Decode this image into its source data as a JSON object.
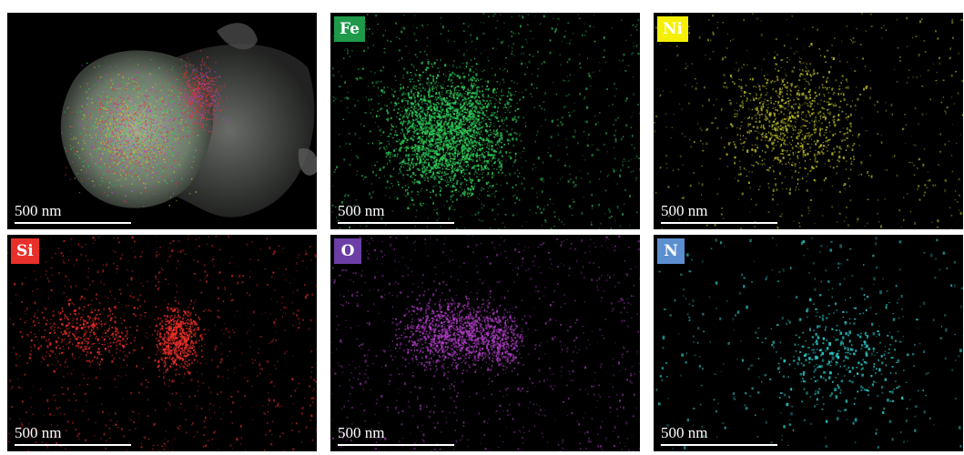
{
  "panels": [
    {
      "id": "overlay",
      "label": "",
      "label_bg": "",
      "label_color": "",
      "dot_color": "",
      "scale_text": "500 nm",
      "grid_col": 0,
      "grid_row": 0
    },
    {
      "id": "fe",
      "label": "Fe",
      "label_bg": "#1e9a4a",
      "label_color": "#ffffff",
      "dot_color": "#2fd05b",
      "scale_text": "500 nm",
      "grid_col": 1,
      "grid_row": 0
    },
    {
      "id": "ni",
      "label": "Ni",
      "label_bg": "#f4f000",
      "label_color": "#ffffff",
      "dot_color": "#c9c92a",
      "scale_text": "500 nm",
      "grid_col": 2,
      "grid_row": 0
    },
    {
      "id": "si",
      "label": "Si",
      "label_bg": "#e8302a",
      "label_color": "#ffffff",
      "dot_color": "#f0302a",
      "scale_text": "500 nm",
      "grid_col": 0,
      "grid_row": 1
    },
    {
      "id": "o",
      "label": "O",
      "label_bg": "#6b3fa6",
      "label_color": "#ffffff",
      "dot_color": "#b23fc8",
      "scale_text": "500 nm",
      "grid_col": 1,
      "grid_row": 1
    },
    {
      "id": "n",
      "label": "N",
      "label_bg": "#5b8fd0",
      "label_color": "#ffffff",
      "dot_color": "#2fd6d6",
      "scale_text": "500 nm",
      "grid_col": 2,
      "grid_row": 1
    }
  ]
}
